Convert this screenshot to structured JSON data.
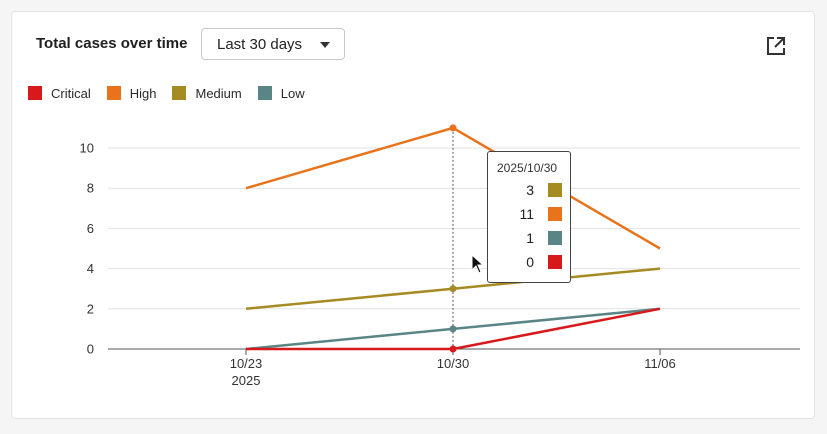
{
  "header": {
    "title": "Total cases over time",
    "range_select": {
      "value": "Last 30 days"
    },
    "external_link_icon": "external-link-icon"
  },
  "legend": [
    {
      "label": "Critical",
      "color": "#d7191c"
    },
    {
      "label": "High",
      "color": "#e8731a"
    },
    {
      "label": "Medium",
      "color": "#a68a22"
    },
    {
      "label": "Low",
      "color": "#5a8587"
    }
  ],
  "chart_data": {
    "type": "line",
    "x": [
      "10/23",
      "10/30",
      "11/06"
    ],
    "x_sublabels": [
      "2025",
      "",
      ""
    ],
    "ylim": [
      0,
      10
    ],
    "yticks": [
      0,
      2,
      4,
      6,
      8,
      10
    ],
    "grid": true,
    "legend_position": "top-left",
    "series": [
      {
        "name": "Critical",
        "color": "#d7191c",
        "values": [
          0,
          0,
          2
        ]
      },
      {
        "name": "High",
        "color": "#e8731a",
        "values": [
          8,
          11,
          5
        ]
      },
      {
        "name": "Medium",
        "color": "#a68a22",
        "values": [
          2,
          3,
          4
        ]
      },
      {
        "name": "Low",
        "color": "#5a8587",
        "values": [
          0,
          1,
          2
        ]
      }
    ],
    "hover_index": 1
  },
  "tooltip": {
    "date": "2025/10/30",
    "rows": [
      {
        "value": "3",
        "color": "#a68a22"
      },
      {
        "value": "11",
        "color": "#e8731a"
      },
      {
        "value": "1",
        "color": "#5a8587"
      },
      {
        "value": "0",
        "color": "#d7191c"
      }
    ]
  }
}
